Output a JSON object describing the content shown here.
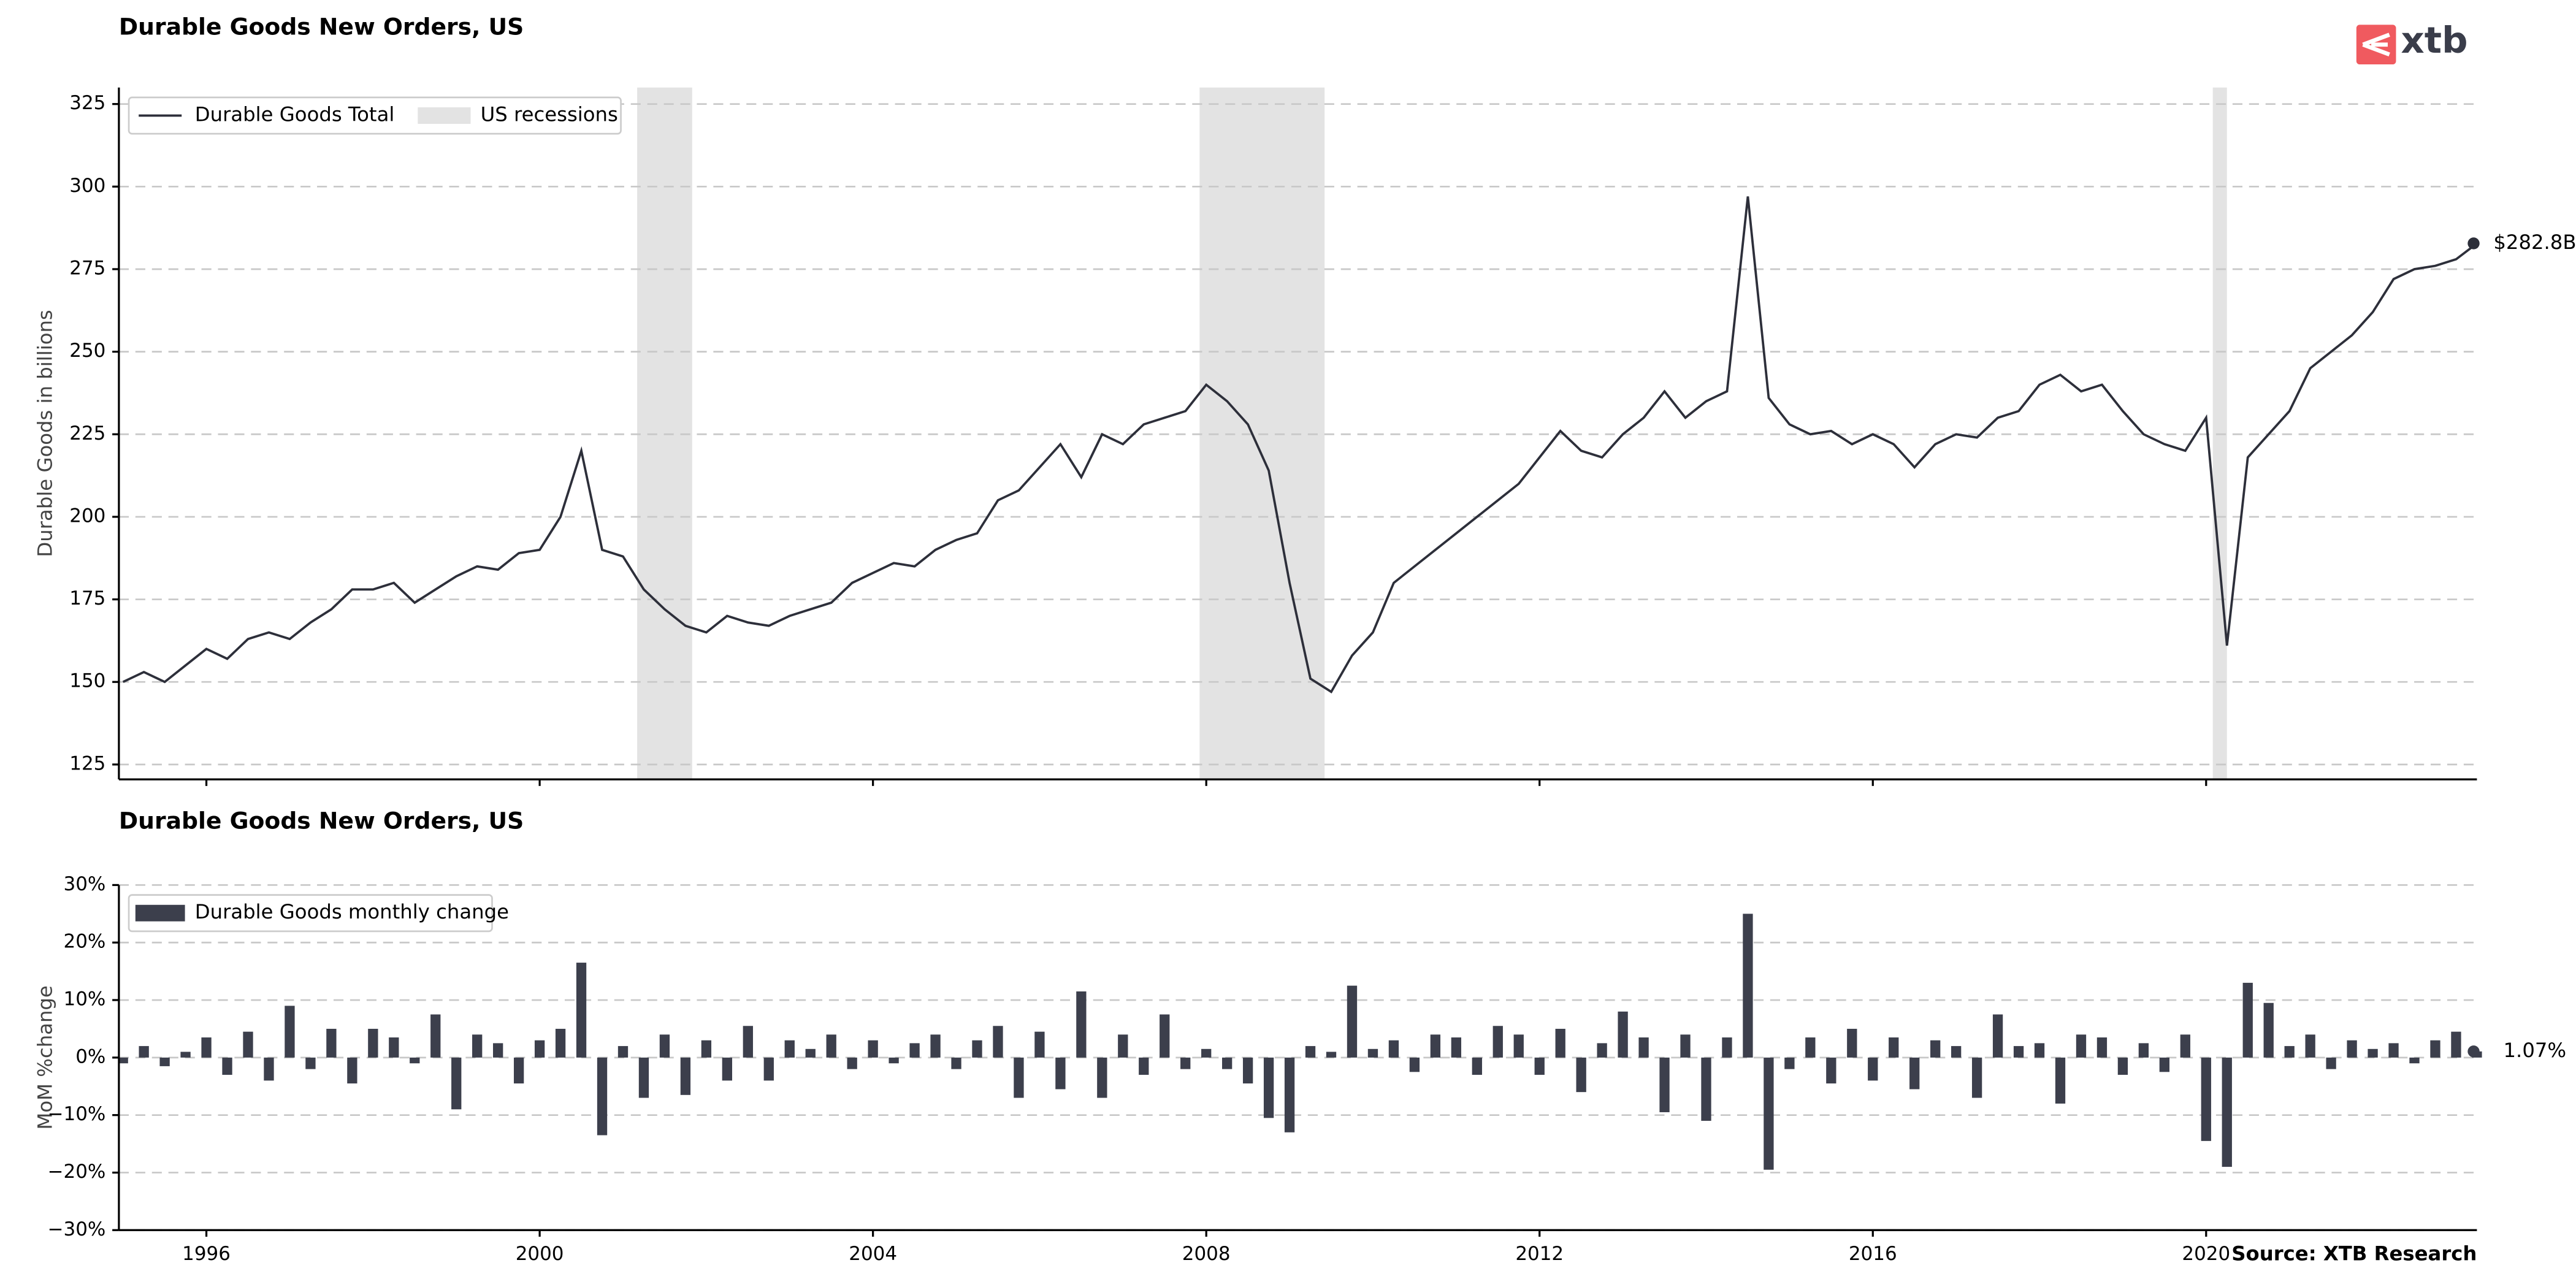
{
  "chart_data": [
    {
      "type": "line",
      "title": "Durable Goods New Orders, US",
      "ylabel": "Durable Goods in billions",
      "x": [
        1995,
        1995.25,
        1995.5,
        1995.75,
        1996,
        1996.25,
        1996.5,
        1996.75,
        1997,
        1997.25,
        1997.5,
        1997.75,
        1998,
        1998.25,
        1998.5,
        1998.75,
        1999,
        1999.25,
        1999.5,
        1999.75,
        2000,
        2000.25,
        2000.5,
        2000.75,
        2001,
        2001.25,
        2001.5,
        2001.75,
        2002,
        2002.25,
        2002.5,
        2002.75,
        2003,
        2003.25,
        2003.5,
        2003.75,
        2004,
        2004.25,
        2004.5,
        2004.75,
        2005,
        2005.25,
        2005.5,
        2005.75,
        2006,
        2006.25,
        2006.5,
        2006.75,
        2007,
        2007.25,
        2007.5,
        2007.75,
        2008,
        2008.25,
        2008.5,
        2008.75,
        2009,
        2009.25,
        2009.5,
        2009.75,
        2010,
        2010.25,
        2010.5,
        2010.75,
        2011,
        2011.25,
        2011.5,
        2011.75,
        2012,
        2012.25,
        2012.5,
        2012.75,
        2013,
        2013.25,
        2013.5,
        2013.75,
        2014,
        2014.25,
        2014.5,
        2014.75,
        2015,
        2015.25,
        2015.5,
        2015.75,
        2016,
        2016.25,
        2016.5,
        2016.75,
        2017,
        2017.25,
        2017.5,
        2017.75,
        2018,
        2018.25,
        2018.5,
        2018.75,
        2019,
        2019.25,
        2019.5,
        2019.75,
        2020,
        2020.25,
        2020.5,
        2020.75,
        2021,
        2021.25,
        2021.5,
        2021.75,
        2022,
        2022.25,
        2022.5,
        2022.75,
        2023,
        2023.25
      ],
      "series": [
        {
          "name": "Durable Goods Total",
          "color": "#2d2f3a",
          "values": [
            150,
            153,
            150,
            155,
            160,
            157,
            163,
            165,
            163,
            168,
            172,
            178,
            178,
            180,
            174,
            178,
            182,
            185,
            184,
            189,
            190,
            200,
            220,
            190,
            188,
            178,
            172,
            167,
            165,
            170,
            168,
            167,
            170,
            172,
            174,
            180,
            183,
            186,
            185,
            190,
            193,
            195,
            205,
            208,
            215,
            222,
            212,
            225,
            222,
            228,
            230,
            232,
            240,
            235,
            228,
            214,
            180,
            151,
            147,
            158,
            165,
            180,
            185,
            190,
            195,
            200,
            205,
            210,
            218,
            226,
            220,
            218,
            225,
            230,
            238,
            230,
            235,
            238,
            297,
            236,
            228,
            225,
            226,
            222,
            225,
            222,
            215,
            222,
            225,
            224,
            230,
            232,
            240,
            243,
            238,
            240,
            232,
            225,
            222,
            220,
            230,
            161,
            218,
            225,
            232,
            245,
            250,
            255,
            262,
            272,
            275,
            276,
            278,
            282.8
          ]
        }
      ],
      "recessions": {
        "name": "US recessions",
        "color": "#e3e3e3",
        "spans": [
          [
            2001.17,
            2001.83
          ],
          [
            2007.92,
            2009.42
          ],
          [
            2020.08,
            2020.25
          ]
        ]
      },
      "annotation": "$282.8B",
      "xlim": [
        1994.95,
        2023.25
      ],
      "xticks": [
        1996,
        2000,
        2004,
        2008,
        2012,
        2016,
        2020
      ],
      "ylim": [
        120.5,
        330
      ],
      "yticks": [
        125,
        150,
        175,
        200,
        225,
        250,
        275,
        300,
        325
      ],
      "grid": true,
      "legend": "upper left"
    },
    {
      "type": "bar",
      "title": "Durable Goods New Orders, US",
      "ylabel": "MoM %change",
      "x": [
        1995,
        1995.25,
        1995.5,
        1995.75,
        1996,
        1996.25,
        1996.5,
        1996.75,
        1997,
        1997.25,
        1997.5,
        1997.75,
        1998,
        1998.25,
        1998.5,
        1998.75,
        1999,
        1999.25,
        1999.5,
        1999.75,
        2000,
        2000.25,
        2000.5,
        2000.75,
        2001,
        2001.25,
        2001.5,
        2001.75,
        2002,
        2002.25,
        2002.5,
        2002.75,
        2003,
        2003.25,
        2003.5,
        2003.75,
        2004,
        2004.25,
        2004.5,
        2004.75,
        2005,
        2005.25,
        2005.5,
        2005.75,
        2006,
        2006.25,
        2006.5,
        2006.75,
        2007,
        2007.25,
        2007.5,
        2007.75,
        2008,
        2008.25,
        2008.5,
        2008.75,
        2009,
        2009.25,
        2009.5,
        2009.75,
        2010,
        2010.25,
        2010.5,
        2010.75,
        2011,
        2011.25,
        2011.5,
        2011.75,
        2012,
        2012.25,
        2012.5,
        2012.75,
        2013,
        2013.25,
        2013.5,
        2013.75,
        2014,
        2014.25,
        2014.5,
        2014.75,
        2015,
        2015.25,
        2015.5,
        2015.75,
        2016,
        2016.25,
        2016.5,
        2016.75,
        2017,
        2017.25,
        2017.5,
        2017.75,
        2018,
        2018.25,
        2018.5,
        2018.75,
        2019,
        2019.25,
        2019.5,
        2019.75,
        2020,
        2020.25,
        2020.5,
        2020.75,
        2021,
        2021.25,
        2021.5,
        2021.75,
        2022,
        2022.25,
        2022.5,
        2022.75,
        2023,
        2023.25
      ],
      "series": [
        {
          "name": "Durable Goods monthly change",
          "color": "#3c3f4c",
          "values": [
            -1,
            2,
            -1.5,
            1,
            3.5,
            -3,
            4.5,
            -4,
            9,
            -2,
            5,
            -4.5,
            5,
            3.5,
            -1,
            7.5,
            -9,
            4,
            2.5,
            -4.5,
            3,
            5,
            16.5,
            -13.5,
            2,
            -7,
            4,
            -6.5,
            3,
            -4,
            5.5,
            -4,
            3,
            1.5,
            4,
            -2,
            3,
            -1,
            2.5,
            4,
            -2,
            3,
            5.5,
            -7,
            4.5,
            -5.5,
            11.5,
            -7,
            4,
            -3,
            7.5,
            -2,
            1.5,
            -2,
            -4.5,
            -10.5,
            -13,
            2,
            1,
            12.5,
            1.5,
            3,
            -2.5,
            4,
            3.5,
            -3,
            5.5,
            4,
            -3,
            5,
            -6,
            2.5,
            8,
            3.5,
            -9.5,
            4,
            -11,
            3.5,
            25,
            -19.5,
            -2,
            3.5,
            -4.5,
            5,
            -4,
            3.5,
            -5.5,
            3,
            2,
            -7,
            7.5,
            2,
            2.5,
            -8,
            4,
            3.5,
            -3,
            2.5,
            -2.5,
            4,
            -14.5,
            -19,
            13,
            9.5,
            2,
            4,
            -2,
            3,
            1.5,
            2.5,
            -1,
            3,
            4.5,
            1.07
          ]
        }
      ],
      "annotation": "1.07%",
      "xlim": [
        1994.95,
        2023.25
      ],
      "xticks": [
        1996,
        2000,
        2004,
        2008,
        2012,
        2016,
        2020
      ],
      "ylim": [
        -30,
        30
      ],
      "yticks": [
        {
          "value": -30,
          "label": "−30%"
        },
        {
          "value": -20,
          "label": "−20%"
        },
        {
          "value": -10,
          "label": "−10%"
        },
        {
          "value": 0,
          "label": "0%"
        },
        {
          "value": 10,
          "label": "10%"
        },
        {
          "value": 20,
          "label": "20%"
        },
        {
          "value": 30,
          "label": "30%"
        }
      ],
      "grid": true,
      "legend": "upper left",
      "source": "Source: XTB Research"
    }
  ],
  "logo": "xtb"
}
